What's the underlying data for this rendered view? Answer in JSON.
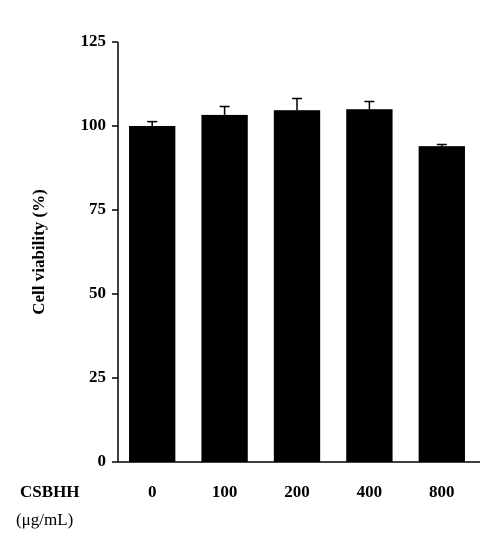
{
  "chart_data": {
    "type": "bar",
    "ylabel": "Cell viability (%)",
    "xlabel": "CSBHH",
    "xlabel_unit": "(μg/mL)",
    "categories": [
      "0",
      "100",
      "200",
      "400",
      "800"
    ],
    "values": [
      100,
      103.3,
      104.7,
      105,
      94
    ],
    "errors": [
      1.3,
      2.5,
      3.5,
      2.3,
      0.5
    ],
    "color": "#000000",
    "ylim": [
      0,
      125
    ],
    "yticks": [
      0,
      25,
      50,
      75,
      100,
      125
    ]
  }
}
